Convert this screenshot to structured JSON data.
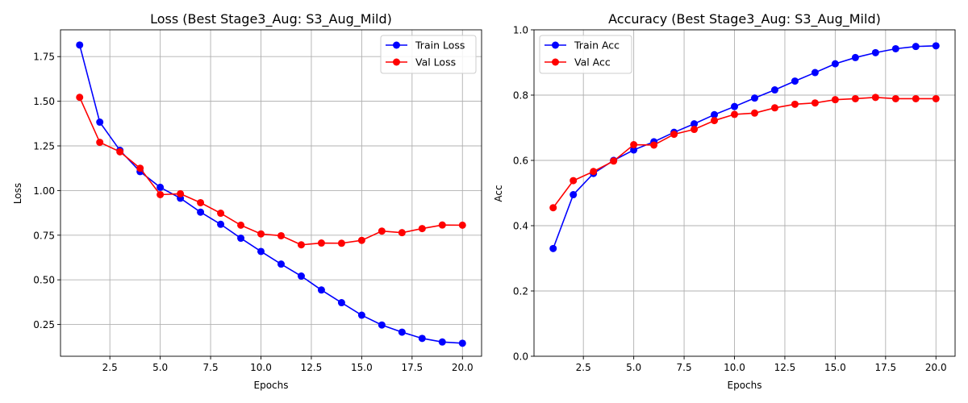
{
  "chart_data": [
    {
      "type": "line",
      "title": "Loss (Best Stage3_Aug: S3_Aug_Mild)",
      "xlabel": "Epochs",
      "ylabel": "Loss",
      "xlim": [
        0.05,
        20.95
      ],
      "ylim": [
        0.072,
        1.9
      ],
      "xticks": [
        2.5,
        5.0,
        7.5,
        10.0,
        12.5,
        15.0,
        17.5,
        20.0
      ],
      "xtick_labels": [
        "2.5",
        "5.0",
        "7.5",
        "10.0",
        "12.5",
        "15.0",
        "17.5",
        "20.0"
      ],
      "yticks": [
        0.25,
        0.5,
        0.75,
        1.0,
        1.25,
        1.5,
        1.75
      ],
      "ytick_labels": [
        "0.25",
        "0.50",
        "0.75",
        "1.00",
        "1.25",
        "1.50",
        "1.75"
      ],
      "grid": true,
      "legend_position": "top-right",
      "x": [
        1,
        2,
        3,
        4,
        5,
        6,
        7,
        8,
        9,
        10,
        11,
        12,
        13,
        14,
        15,
        16,
        17,
        18,
        19,
        20
      ],
      "series": [
        {
          "name": "Train Loss",
          "color": "#0000ff",
          "values": [
            1.815,
            1.383,
            1.225,
            1.106,
            1.018,
            0.957,
            0.879,
            0.811,
            0.733,
            0.659,
            0.588,
            0.521,
            0.443,
            0.372,
            0.302,
            0.247,
            0.207,
            0.172,
            0.152,
            0.145
          ]
        },
        {
          "name": "Val Loss",
          "color": "#ff0000",
          "values": [
            1.522,
            1.27,
            1.217,
            1.125,
            0.977,
            0.982,
            0.932,
            0.873,
            0.806,
            0.757,
            0.747,
            0.696,
            0.706,
            0.705,
            0.721,
            0.773,
            0.764,
            0.787,
            0.807,
            0.806
          ]
        }
      ]
    },
    {
      "type": "line",
      "title": "Accuracy (Best Stage3_Aug: S3_Aug_Mild)",
      "xlabel": "Epochs",
      "ylabel": "Acc",
      "xlim": [
        0.05,
        20.95
      ],
      "ylim": [
        0.0,
        1.0
      ],
      "xticks": [
        2.5,
        5.0,
        7.5,
        10.0,
        12.5,
        15.0,
        17.5,
        20.0
      ],
      "xtick_labels": [
        "2.5",
        "5.0",
        "7.5",
        "10.0",
        "12.5",
        "15.0",
        "17.5",
        "20.0"
      ],
      "yticks": [
        0.0,
        0.2,
        0.4,
        0.6,
        0.8,
        1.0
      ],
      "ytick_labels": [
        "0.0",
        "0.2",
        "0.4",
        "0.6",
        "0.8",
        "1.0"
      ],
      "grid": true,
      "legend_position": "top-left",
      "x": [
        1,
        2,
        3,
        4,
        5,
        6,
        7,
        8,
        9,
        10,
        11,
        12,
        13,
        14,
        15,
        16,
        17,
        18,
        19,
        20
      ],
      "series": [
        {
          "name": "Train Acc",
          "color": "#0000ff",
          "values": [
            0.33,
            0.495,
            0.56,
            0.6,
            0.632,
            0.657,
            0.686,
            0.712,
            0.74,
            0.765,
            0.791,
            0.816,
            0.843,
            0.869,
            0.896,
            0.915,
            0.93,
            0.942,
            0.949,
            0.951
          ]
        },
        {
          "name": "Val Acc",
          "color": "#ff0000",
          "values": [
            0.455,
            0.538,
            0.566,
            0.598,
            0.648,
            0.647,
            0.68,
            0.695,
            0.722,
            0.741,
            0.745,
            0.761,
            0.772,
            0.776,
            0.786,
            0.789,
            0.793,
            0.789,
            0.789,
            0.789
          ]
        }
      ]
    }
  ]
}
